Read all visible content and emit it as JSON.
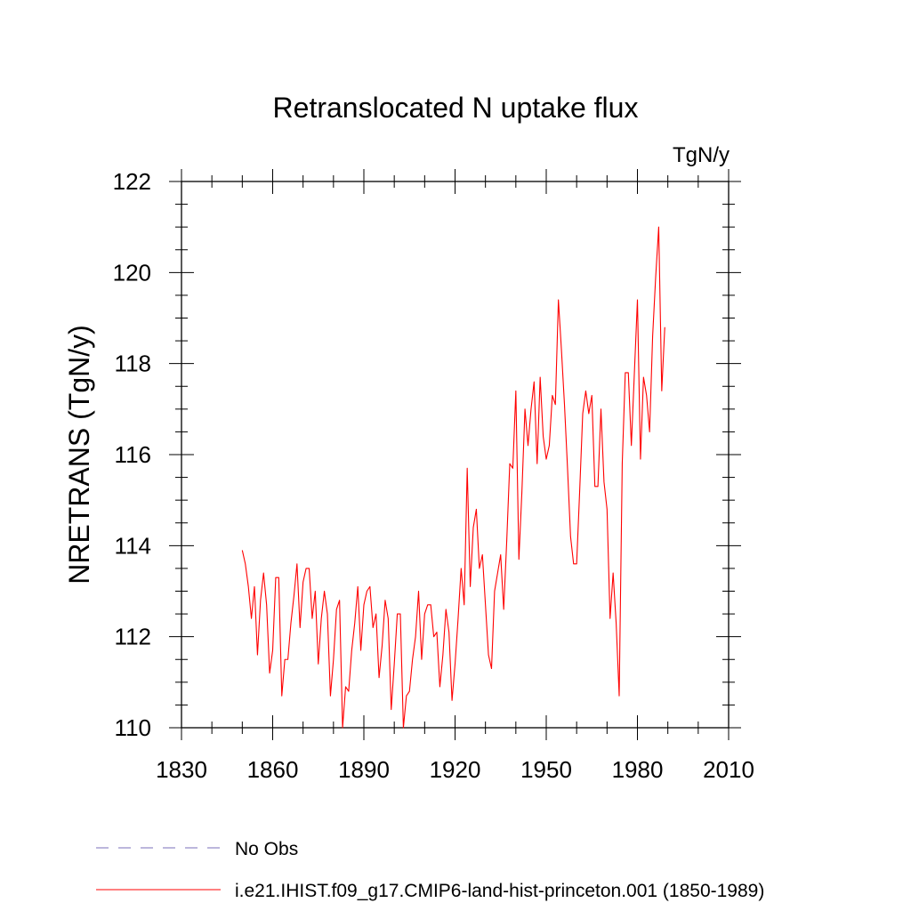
{
  "chart_data": {
    "type": "line",
    "title": "Retranslocated N uptake flux",
    "units": "TgN/y",
    "ylabel": "NRETRANS  (TgN/y)",
    "xlabel": "",
    "xlim": [
      1830,
      2010
    ],
    "ylim": [
      110,
      122
    ],
    "x_ticks": [
      1830,
      1860,
      1890,
      1920,
      1950,
      1980,
      2010
    ],
    "y_ticks": [
      110,
      112,
      114,
      116,
      118,
      120,
      122
    ],
    "grid": false,
    "legend_position": "bottom-left",
    "legend": [
      {
        "label": "No Obs",
        "color": "#7a6fb8",
        "style": "dashed"
      },
      {
        "label": "i.e21.IHIST.f09_g17.CMIP6-land-hist-princeton.001 (1850-1989)",
        "color": "#ff0000",
        "style": "solid"
      }
    ],
    "series": [
      {
        "name": "i.e21.IHIST.f09_g17.CMIP6-land-hist-princeton.001 (1850-1989)",
        "color": "#ff0000",
        "start_year": 1850,
        "values": [
          113.9,
          113.6,
          113.1,
          112.4,
          113.1,
          111.6,
          112.8,
          113.4,
          112.7,
          111.2,
          111.7,
          113.3,
          113.3,
          110.7,
          111.5,
          111.5,
          112.3,
          112.9,
          113.6,
          112.2,
          113.2,
          113.5,
          113.5,
          112.4,
          113.0,
          111.4,
          112.4,
          113.0,
          112.5,
          110.7,
          111.5,
          112.6,
          112.8,
          110.0,
          110.9,
          110.8,
          111.7,
          112.3,
          113.1,
          111.7,
          112.7,
          113.0,
          113.1,
          112.2,
          112.5,
          111.1,
          111.8,
          112.8,
          112.4,
          110.4,
          111.4,
          112.5,
          112.5,
          110.0,
          110.7,
          110.8,
          111.5,
          112.0,
          113.0,
          111.5,
          112.5,
          112.7,
          112.7,
          112.0,
          112.1,
          110.9,
          111.6,
          112.6,
          112.1,
          110.6,
          111.4,
          112.4,
          113.5,
          112.7,
          115.7,
          113.1,
          114.4,
          114.8,
          113.5,
          113.8,
          112.7,
          111.6,
          111.3,
          113.0,
          113.4,
          113.8,
          112.6,
          114.1,
          115.8,
          115.7,
          117.4,
          113.7,
          115.2,
          117.0,
          116.2,
          117.0,
          117.6,
          115.8,
          117.7,
          116.4,
          115.9,
          116.2,
          117.3,
          117.1,
          119.4,
          118.3,
          117.1,
          115.7,
          114.2,
          113.6,
          113.6,
          115.2,
          116.9,
          117.4,
          116.9,
          117.3,
          115.3,
          115.3,
          117.0,
          115.4,
          114.8,
          112.4,
          113.4,
          112.3,
          110.7,
          115.8,
          117.8,
          117.8,
          116.2,
          117.8,
          119.4,
          115.9,
          117.7,
          117.3,
          116.5,
          118.6,
          119.9,
          121.0,
          117.4,
          118.8
        ]
      }
    ]
  }
}
